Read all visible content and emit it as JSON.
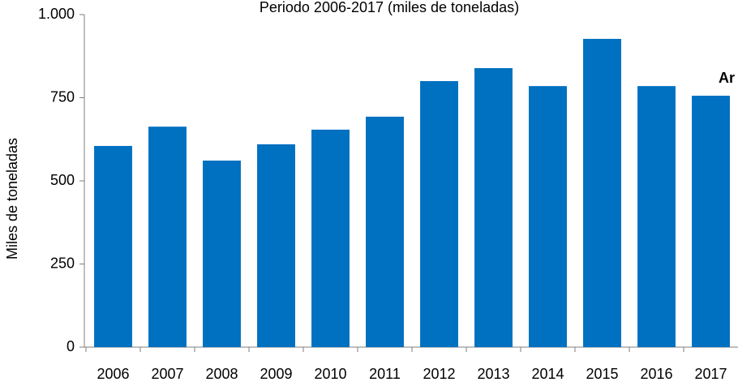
{
  "chart_data": {
    "type": "bar",
    "title": "Periodo 2006-2017 (miles de toneladas)",
    "y_label": "Miles de toneladas",
    "annotation": "Ar",
    "categories": [
      "2006",
      "2007",
      "2008",
      "2009",
      "2010",
      "2011",
      "2012",
      "2013",
      "2014",
      "2015",
      "2016",
      "2017"
    ],
    "values": [
      605,
      663,
      561,
      610,
      654,
      693,
      800,
      839,
      785,
      927,
      785,
      756
    ],
    "color": "#0070c0",
    "ylim": [
      0,
      1000
    ],
    "yticks": [
      0,
      250,
      500,
      750,
      {
        "value": 1000,
        "label": "1.000"
      }
    ],
    "grid": false
  }
}
